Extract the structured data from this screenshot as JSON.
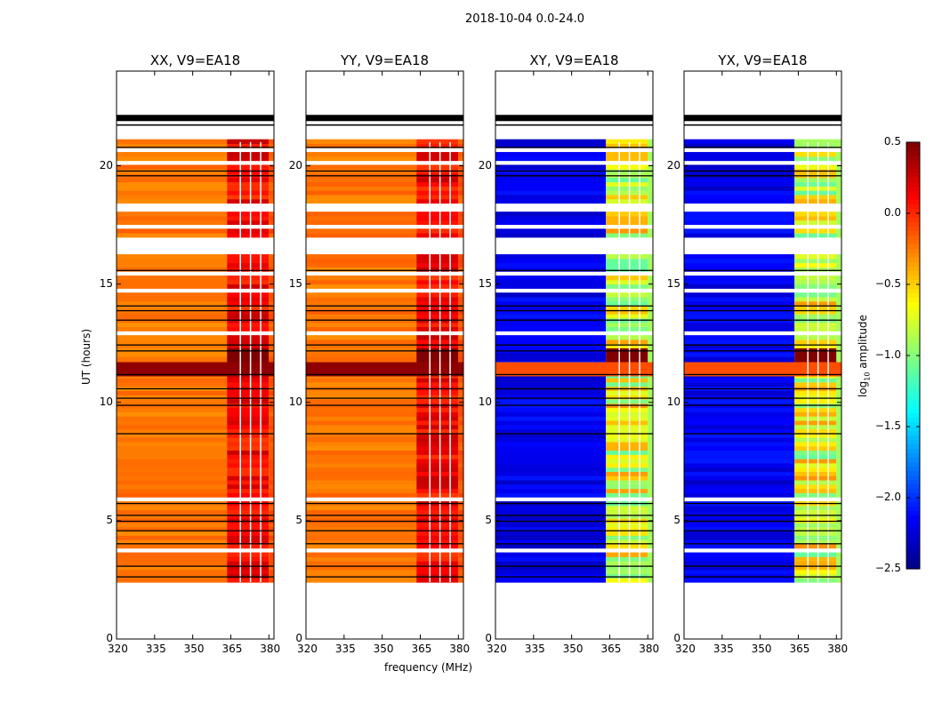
{
  "figure": {
    "suptitle": "2018-10-04 0.0-24.0",
    "xlabel": "frequency (MHz)",
    "ylabel": "UT (hours)",
    "colorbar_label": "log10 amplitude",
    "colorbar_label_prefix": "log",
    "colorbar_label_sub": "10",
    "colorbar_label_suffix": " amplitude"
  },
  "chart_data": {
    "type": "heatmap",
    "colormap": "jet",
    "x_range": [
      320,
      382
    ],
    "y_range": [
      0,
      24
    ],
    "x_ticks": [
      320,
      335,
      350,
      365,
      380
    ],
    "x_tick_labels": [
      "320",
      "335",
      "350",
      "365",
      "380"
    ],
    "y_ticks": [
      0,
      5,
      10,
      15,
      20
    ],
    "y_tick_labels": [
      "0",
      "5",
      "10",
      "15",
      "20"
    ],
    "color_range": [
      -2.5,
      0.5
    ],
    "colorbar_ticks": [
      0.5,
      0.0,
      -0.5,
      -1.0,
      -1.5,
      -2.0,
      -2.5
    ],
    "colorbar_tick_labels": [
      "0.5",
      "0.0",
      "−0.5",
      "−1.0",
      "−1.5",
      "−2.0",
      "−2.5"
    ],
    "data_time_range": [
      2.4,
      21.0
    ],
    "bright_band_mhz": [
      363.5,
      380
    ],
    "saturated_interval_hours": [
      11.1,
      11.7
    ],
    "panels": [
      {
        "title": "XX, V9=EA18",
        "pol": "XX",
        "base_level": -0.25
      },
      {
        "title": "YY, V9=EA18",
        "pol": "YY",
        "base_level": -0.25
      },
      {
        "title": "XY, V9=EA18",
        "pol": "XY",
        "base_level": -2.3
      },
      {
        "title": "YX, V9=EA18",
        "pol": "YX",
        "base_level": -2.3
      }
    ]
  }
}
